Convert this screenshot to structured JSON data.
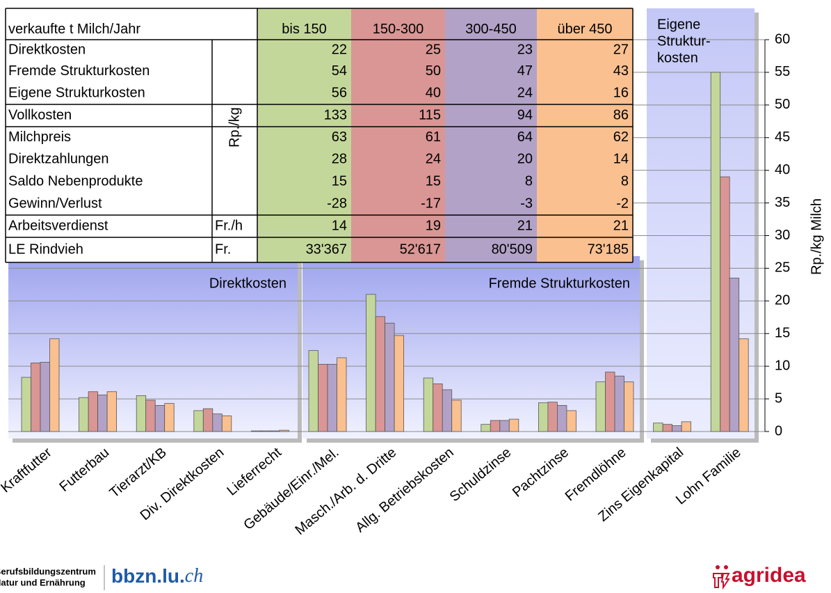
{
  "chart_data": {
    "type": "bar",
    "y_label": "Rp./kg Milch",
    "categories": [
      "Kraftfutter",
      "Futterbau",
      "Tierarzt/KB",
      "Div. Direktkosten",
      "Lieferrecht",
      "Gebäude/Einr./Mel.",
      "Masch./Arb. d. Dritte",
      "Allg. Betriebskosten",
      "Schuldzinse",
      "Pachtzinse",
      "Fremdlöhne",
      "Zins Eigenkapital",
      "Lohn Familie"
    ],
    "series": [
      {
        "name": "bis 150",
        "color": "#c4d79b",
        "values": [
          8.3,
          5.2,
          5.5,
          3.2,
          0.1,
          12.4,
          21.0,
          8.2,
          1.1,
          4.4,
          7.6,
          1.3,
          55
        ]
      },
      {
        "name": "150-300",
        "color": "#d99694",
        "values": [
          10.5,
          6.1,
          4.8,
          3.5,
          0.1,
          10.3,
          17.6,
          7.3,
          1.7,
          4.5,
          9.1,
          1.1,
          39
        ]
      },
      {
        "name": "300-450",
        "color": "#b2a2c7",
        "values": [
          10.6,
          5.6,
          4.0,
          2.7,
          0.1,
          10.3,
          16.6,
          6.4,
          1.7,
          4.0,
          8.5,
          0.9,
          23.5
        ]
      },
      {
        "name": "über 450",
        "color": "#fac090",
        "values": [
          14.2,
          6.1,
          4.3,
          2.4,
          0.2,
          11.3,
          14.7,
          4.8,
          1.9,
          3.2,
          7.6,
          1.5,
          14.2
        ]
      }
    ],
    "panels": [
      {
        "lines": [
          "Direktkosten"
        ]
      },
      {
        "lines": [
          "Fremde Strukturkosten"
        ]
      },
      {
        "lines": [
          "Eigene",
          "Struktur-",
          "kosten"
        ]
      }
    ],
    "ylim": [
      0,
      60
    ],
    "yticks": [
      0,
      5,
      10,
      15,
      20,
      25,
      30,
      35,
      40,
      45,
      50,
      55,
      60
    ],
    "grid": true
  },
  "table": {
    "title": "verkaufte t Milch/Jahr",
    "unit": "Rp./kg",
    "rows": [
      {
        "label": "Direktkosten",
        "values": [
          22,
          25,
          23,
          27
        ]
      },
      {
        "label": "Fremde Strukturkosten",
        "values": [
          54,
          50,
          47,
          43
        ]
      },
      {
        "label": "Eigene Strukturkosten",
        "values": [
          56,
          40,
          24,
          16
        ]
      },
      {
        "label": "Vollkosten",
        "values": [
          133,
          115,
          94,
          86
        ]
      },
      {
        "label": "Milchpreis",
        "values": [
          63,
          61,
          64,
          62
        ]
      },
      {
        "label": "Direktzahlungen",
        "values": [
          28,
          24,
          20,
          14
        ]
      },
      {
        "label": "Saldo Nebenprodukte",
        "values": [
          15,
          15,
          8,
          8
        ]
      },
      {
        "label": "Gewinn/Verlust",
        "values": [
          -28,
          -17,
          -3,
          -2
        ]
      },
      {
        "label": "Arbeitsverdienst",
        "unit": "Fr./h",
        "values": [
          14,
          19,
          21,
          21
        ]
      },
      {
        "label": "LE Rindvieh",
        "unit": "Fr.",
        "values": [
          "33'367",
          "52'617",
          "80'509",
          "73'185"
        ]
      }
    ]
  },
  "logos": {
    "left_line1": "Berufsbildungszentrum",
    "left_line2": "Natur und Ernährung",
    "left_brand": "bbzn.lu.",
    "left_tld": "ch",
    "right_brand": "agridea"
  }
}
